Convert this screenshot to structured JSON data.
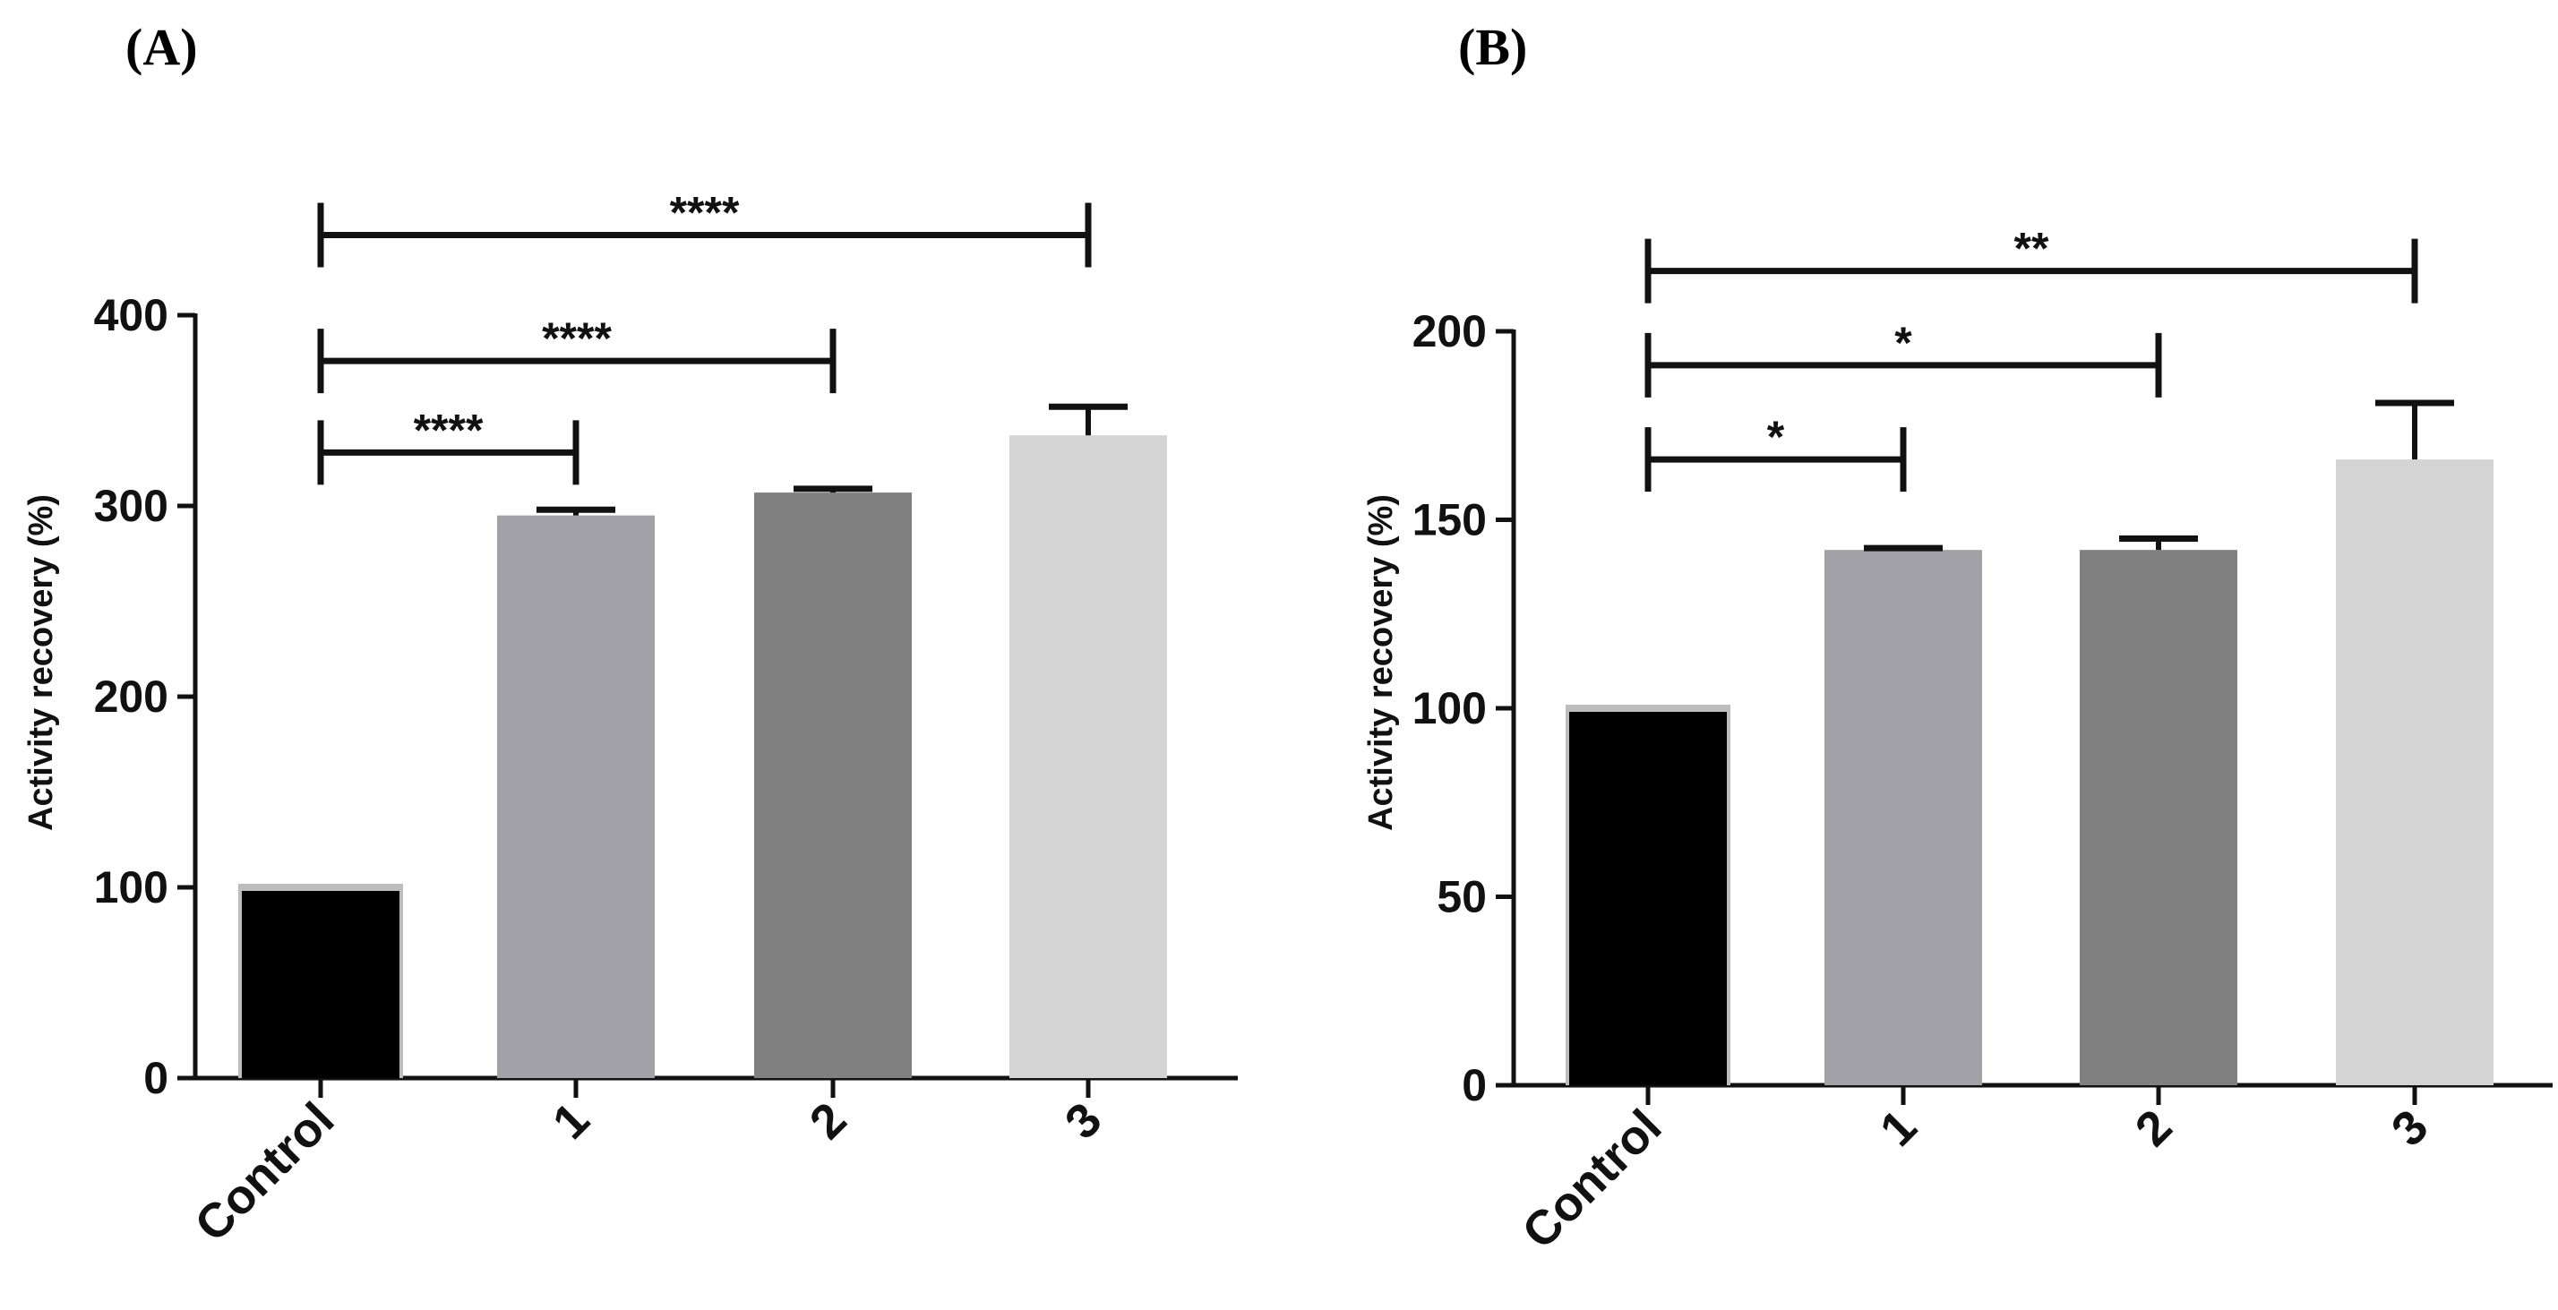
{
  "chart_data": [
    {
      "type": "bar",
      "panel_label": "(A)",
      "categories": [
        "Control",
        "1",
        "2",
        "3"
      ],
      "values": [
        100,
        295,
        307,
        337
      ],
      "errors": [
        0,
        3,
        2,
        15
      ],
      "colors": [
        "#000000",
        "#a2a1a7",
        "#808080",
        "#d4d4d4"
      ],
      "ylabel": "Activity recovery (%)",
      "xlabel": "",
      "ylim": [
        0,
        400
      ],
      "yticks": [
        "0",
        "100",
        "200",
        "300",
        "400"
      ],
      "yticks_values": [
        0,
        100,
        200,
        300,
        400
      ],
      "significance": [
        {
          "from": 0,
          "to": 1,
          "y": 328,
          "label": "****"
        },
        {
          "from": 0,
          "to": 2,
          "y": 376,
          "label": "****"
        },
        {
          "from": 0,
          "to": 3,
          "y": 442,
          "label": "****"
        }
      ]
    },
    {
      "type": "bar",
      "panel_label": "(B)",
      "categories": [
        "Control",
        "1",
        "2",
        "3"
      ],
      "values": [
        100,
        142,
        142,
        166
      ],
      "errors": [
        0,
        0.5,
        3,
        15
      ],
      "colors": [
        "#000000",
        "#a2a1a7",
        "#808080",
        "#d4d4d4"
      ],
      "ylabel": "Activity recovery (%)",
      "xlabel": "",
      "ylim": [
        0,
        200
      ],
      "yticks": [
        "0",
        "50",
        "100",
        "150",
        "200"
      ],
      "yticks_values": [
        0,
        50,
        100,
        150,
        200
      ],
      "significance": [
        {
          "from": 0,
          "to": 1,
          "y": 166,
          "label": "*"
        },
        {
          "from": 0,
          "to": 2,
          "y": 191,
          "label": "*"
        },
        {
          "from": 0,
          "to": 3,
          "y": 216,
          "label": "**"
        }
      ]
    }
  ]
}
